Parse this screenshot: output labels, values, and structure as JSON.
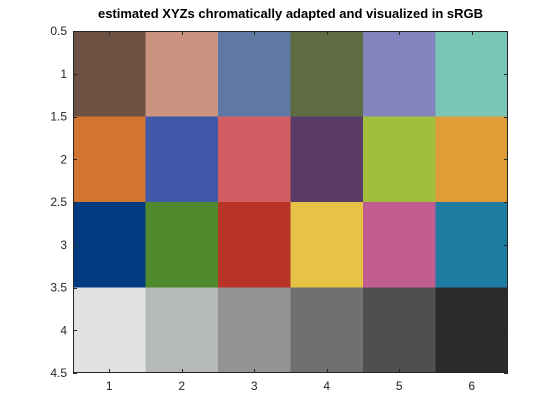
{
  "chart_data": {
    "type": "heatmap",
    "title": "estimated XYZs chromatically adapted and visualized in sRGB",
    "xlabel": "",
    "ylabel": "",
    "xlim": [
      0.5,
      6.5
    ],
    "ylim": [
      0.5,
      4.5
    ],
    "y_direction": "reverse",
    "grid": false,
    "xticks": [
      1,
      2,
      3,
      4,
      5,
      6
    ],
    "yticks": [
      0.5,
      1,
      1.5,
      2,
      2.5,
      3,
      3.5,
      4,
      4.5
    ],
    "ytick_labels": [
      "0.5",
      "1",
      "1.5",
      "2",
      "2.5",
      "3",
      "3.5",
      "4",
      "4.5"
    ],
    "rows": 4,
    "cols": 6,
    "cells": [
      [
        "#6d5243",
        "#cb9380",
        "#5e79a3",
        "#5f6b42",
        "#8384bd",
        "#79c6b5"
      ],
      [
        "#d17530",
        "#4159a8",
        "#d15e62",
        "#5a3a67",
        "#a1bf3d",
        "#df9d37"
      ],
      [
        "#033b83",
        "#4f8b2c",
        "#b83428",
        "#e6c245",
        "#c15e8f",
        "#1e7ca3"
      ],
      [
        "#e1e3e2",
        "#b6b9ba",
        "#939494",
        "#6f706f",
        "#4e4f50",
        "#2b2b2b"
      ]
    ]
  }
}
